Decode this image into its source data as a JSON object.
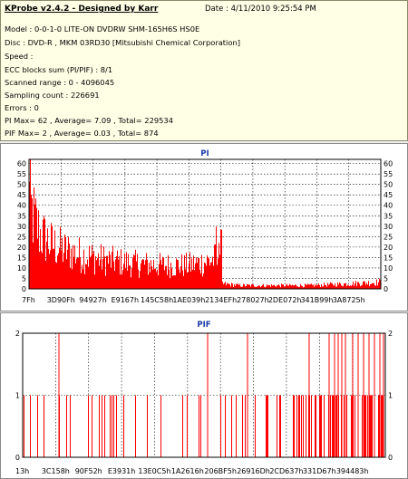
{
  "info": {
    "title": "KProbe v2.4.2 - Designed by Karr",
    "date": "Date : 4/11/2010 9:25:54 PM",
    "lines": [
      "Model : 0-0-1-0 LITE-ON DVDRW SHM-165H6S HS0E",
      "Disc : DVD-R , MKM 03RD30  [Mitsubishi Chemical Corporation]",
      "Speed :",
      "ECC blocks sum (PI/PIF) : 8/1",
      "Scanned range : 0 - 4096045",
      "Sampling count : 226691",
      "Errors : 0",
      "PI Max= 62 , Average= 7.09 , Total= 229534",
      "PIF Max= 2 , Average= 0.03 , Total= 874"
    ]
  },
  "colors": {
    "series": "#ff0000",
    "title": "#1a3aa8",
    "panel_bg": "#ffffff",
    "info_bg": "#ffffe6",
    "grid": "#000000"
  },
  "chart_data": [
    {
      "type": "bar",
      "title": "PI",
      "ylim": [
        0,
        62
      ],
      "yticks": [
        0,
        5,
        10,
        15,
        20,
        25,
        30,
        35,
        40,
        45,
        50,
        55,
        60
      ],
      "xtick_labels": [
        "7Fh",
        "3D90Fh",
        "94927h",
        "E9167h",
        "145C58h",
        "1AE039h",
        "2134EFh",
        "278027h",
        "2DE072h",
        "341B99h",
        "3A8725h"
      ],
      "grid": true,
      "x_range": [
        0,
        4096045
      ],
      "profile": [
        {
          "x": 0,
          "y": 50
        },
        {
          "x": 0.01,
          "y": 44
        },
        {
          "x": 0.03,
          "y": 33
        },
        {
          "x": 0.06,
          "y": 27
        },
        {
          "x": 0.1,
          "y": 23
        },
        {
          "x": 0.15,
          "y": 20
        },
        {
          "x": 0.22,
          "y": 17
        },
        {
          "x": 0.3,
          "y": 15
        },
        {
          "x": 0.38,
          "y": 14
        },
        {
          "x": 0.45,
          "y": 14
        },
        {
          "x": 0.5,
          "y": 16
        },
        {
          "x": 0.53,
          "y": 18
        },
        {
          "x": 0.545,
          "y": 24
        },
        {
          "x": 0.549,
          "y": 3
        },
        {
          "x": 0.6,
          "y": 2
        },
        {
          "x": 0.7,
          "y": 2
        },
        {
          "x": 0.8,
          "y": 2
        },
        {
          "x": 0.9,
          "y": 3
        },
        {
          "x": 1.0,
          "y": 4
        }
      ],
      "max": 62
    },
    {
      "type": "bar",
      "title": "PIF",
      "ylim": [
        0,
        2
      ],
      "yticks": [
        0,
        1,
        2
      ],
      "xtick_labels": [
        "13h",
        "3C158h",
        "90F52h",
        "E3931h",
        "13E0C5h",
        "1A2616h",
        "206BF5h",
        "26916Dh",
        "2CD637h",
        "331D67h",
        "394483h"
      ],
      "grid": true,
      "x_range": [
        0,
        4096045
      ],
      "values_at_2": [
        0.1,
        0.51,
        0.62,
        0.79,
        0.845,
        0.86,
        0.87,
        0.88,
        0.89,
        0.91,
        0.925,
        0.94,
        0.955,
        0.97,
        0.985,
        0.995
      ],
      "density_of_1": [
        {
          "x": 0.0,
          "d": 0.35
        },
        {
          "x": 0.2,
          "d": 0.25
        },
        {
          "x": 0.4,
          "d": 0.3
        },
        {
          "x": 0.55,
          "d": 0.45
        },
        {
          "x": 0.7,
          "d": 0.5
        },
        {
          "x": 0.85,
          "d": 0.8
        },
        {
          "x": 1.0,
          "d": 0.9
        }
      ]
    }
  ]
}
